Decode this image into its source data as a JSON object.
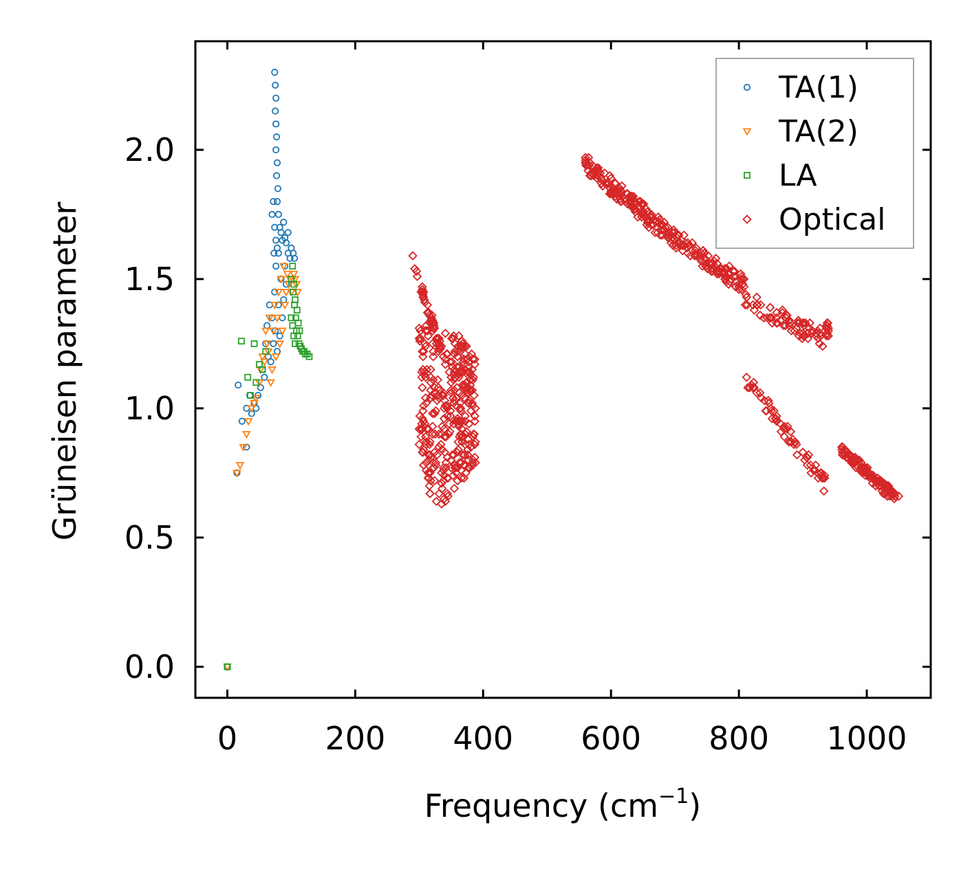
{
  "chart_data": {
    "type": "scatter",
    "title": "",
    "xlabel": "Frequency (cm",
    "xlabel_sup": "−1",
    "xlabel_close": ")",
    "ylabel": "Grüneisen parameter",
    "xlim": [
      -50,
      1100
    ],
    "ylim": [
      -0.12,
      2.42
    ],
    "xticks": [
      0,
      200,
      400,
      600,
      800,
      1000
    ],
    "xtick_labels": [
      "0",
      "200",
      "400",
      "600",
      "800",
      "1000"
    ],
    "yticks": [
      0.0,
      0.5,
      1.0,
      1.5,
      2.0
    ],
    "ytick_labels": [
      "0.0",
      "0.5",
      "1.0",
      "1.5",
      "2.0"
    ],
    "grid": false,
    "legend_position": "top-right",
    "series": [
      {
        "name": "TA(1)",
        "marker": "circle",
        "color": "#1f77b4",
        "points": [
          [
            0,
            0.0
          ],
          [
            15,
            0.75
          ],
          [
            17,
            1.09
          ],
          [
            23,
            0.95
          ],
          [
            30,
            0.85
          ],
          [
            30,
            1.0
          ],
          [
            35,
            1.05
          ],
          [
            38,
            0.98
          ],
          [
            42,
            1.02
          ],
          [
            45,
            1.0
          ],
          [
            48,
            1.05
          ],
          [
            52,
            1.08
          ],
          [
            55,
            1.15
          ],
          [
            58,
            1.12
          ],
          [
            60,
            1.25
          ],
          [
            62,
            1.32
          ],
          [
            64,
            1.2
          ],
          [
            66,
            1.4
          ],
          [
            68,
            1.18
          ],
          [
            70,
            1.35
          ],
          [
            72,
            1.25
          ],
          [
            74,
            1.45
          ],
          [
            75,
            1.3
          ],
          [
            76,
            1.55
          ],
          [
            78,
            1.22
          ],
          [
            80,
            1.4
          ],
          [
            82,
            1.28
          ],
          [
            84,
            1.5
          ],
          [
            86,
            1.35
          ],
          [
            88,
            1.42
          ],
          [
            90,
            1.55
          ],
          [
            92,
            1.48
          ],
          [
            95,
            1.6
          ],
          [
            98,
            1.58
          ],
          [
            100,
            1.62
          ],
          [
            103,
            1.6
          ],
          [
            105,
            1.58
          ],
          [
            74,
            2.3
          ],
          [
            75,
            2.25
          ],
          [
            76,
            2.2
          ],
          [
            75,
            2.15
          ],
          [
            76,
            2.1
          ],
          [
            77,
            2.05
          ],
          [
            76,
            2.0
          ],
          [
            78,
            1.95
          ],
          [
            77,
            1.9
          ],
          [
            79,
            1.85
          ],
          [
            78,
            1.8
          ],
          [
            80,
            1.75
          ],
          [
            82,
            1.7
          ],
          [
            84,
            1.68
          ],
          [
            86,
            1.65
          ],
          [
            88,
            1.72
          ],
          [
            90,
            1.66
          ],
          [
            92,
            1.64
          ],
          [
            95,
            1.68
          ],
          [
            70,
            1.75
          ],
          [
            72,
            1.8
          ],
          [
            74,
            1.7
          ],
          [
            76,
            1.65
          ],
          [
            73,
            1.6
          ],
          [
            78,
            1.62
          ],
          [
            80,
            1.6
          ]
        ]
      },
      {
        "name": "TA(2)",
        "marker": "triangle-down",
        "color": "#ff7f0e",
        "points": [
          [
            0,
            0.0
          ],
          [
            15,
            0.75
          ],
          [
            20,
            0.78
          ],
          [
            25,
            0.85
          ],
          [
            30,
            0.9
          ],
          [
            33,
            0.95
          ],
          [
            38,
            1.0
          ],
          [
            42,
            1.02
          ],
          [
            45,
            1.04
          ],
          [
            50,
            1.1
          ],
          [
            52,
            1.15
          ],
          [
            55,
            1.2
          ],
          [
            58,
            1.18
          ],
          [
            60,
            1.3
          ],
          [
            62,
            1.25
          ],
          [
            64,
            1.22
          ],
          [
            66,
            1.35
          ],
          [
            68,
            1.1
          ],
          [
            70,
            1.15
          ],
          [
            72,
            1.3
          ],
          [
            74,
            1.4
          ],
          [
            76,
            1.2
          ],
          [
            78,
            1.35
          ],
          [
            80,
            1.45
          ],
          [
            82,
            1.25
          ],
          [
            84,
            1.5
          ],
          [
            86,
            1.3
          ],
          [
            88,
            1.55
          ],
          [
            90,
            1.4
          ],
          [
            92,
            1.45
          ],
          [
            94,
            1.52
          ],
          [
            96,
            1.48
          ],
          [
            98,
            1.5
          ],
          [
            100,
            1.45
          ],
          [
            102,
            1.5
          ],
          [
            104,
            1.52
          ],
          [
            106,
            1.5
          ],
          [
            108,
            1.48
          ],
          [
            110,
            1.45
          ]
        ]
      },
      {
        "name": "LA",
        "marker": "square",
        "color": "#2ca02c",
        "points": [
          [
            0,
            0.0
          ],
          [
            22,
            1.26
          ],
          [
            32,
            1.12
          ],
          [
            36,
            1.05
          ],
          [
            42,
            1.25
          ],
          [
            45,
            1.1
          ],
          [
            50,
            1.17
          ],
          [
            55,
            1.15
          ],
          [
            60,
            1.22
          ],
          [
            100,
            1.5
          ],
          [
            103,
            1.45
          ],
          [
            105,
            1.4
          ],
          [
            107,
            1.35
          ],
          [
            108,
            1.3
          ],
          [
            110,
            1.28
          ],
          [
            112,
            1.25
          ],
          [
            114,
            1.24
          ],
          [
            116,
            1.23
          ],
          [
            118,
            1.22
          ],
          [
            120,
            1.22
          ],
          [
            122,
            1.21
          ],
          [
            125,
            1.21
          ],
          [
            128,
            1.2
          ],
          [
            102,
            1.55
          ],
          [
            104,
            1.48
          ],
          [
            106,
            1.42
          ],
          [
            109,
            1.38
          ],
          [
            111,
            1.33
          ],
          [
            113,
            1.3
          ],
          [
            100,
            1.35
          ],
          [
            102,
            1.32
          ],
          [
            104,
            1.28
          ],
          [
            106,
            1.25
          ]
        ]
      },
      {
        "name": "Optical",
        "marker": "diamond",
        "color": "#d62728",
        "points": []
      }
    ]
  }
}
